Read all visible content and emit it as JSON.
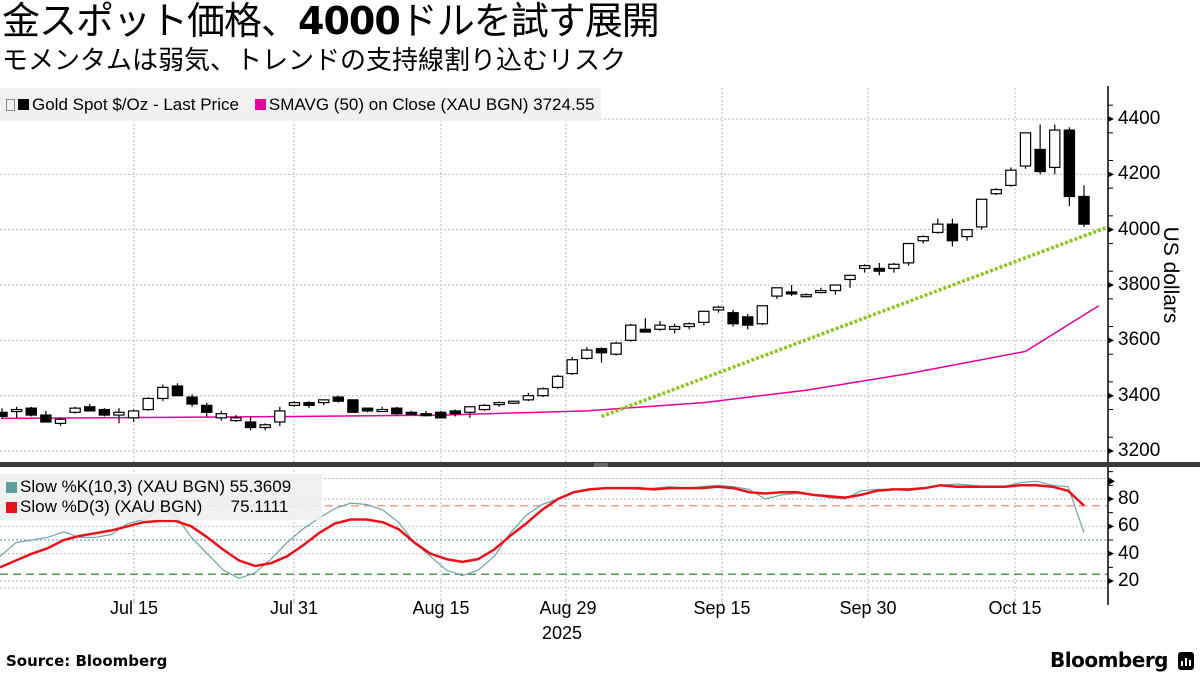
{
  "header": {
    "title_prefix": "金スポット価格、",
    "title_bold": "4000",
    "title_suffix": "ドルを試す展開",
    "subtitle": "モメンタムは弱気、トレンドの支持線割り込むリスク"
  },
  "legend_main": {
    "series1_label": "Gold Spot $/Oz - Last Price",
    "series2_label": "SMAVG (50)  on Close (XAU BGN) 3724.55",
    "series1_color": "#000000",
    "series2_color": "#e6009a"
  },
  "legend_stoch": {
    "k_label": "Slow %K(10,3) (XAU BGN) 55.3609",
    "d_label": "Slow %D(3) (XAU BGN)      75.1111",
    "k_color": "#5f9ea0",
    "d_color": "#e8131a"
  },
  "axes": {
    "y_title": "US dollars",
    "y_ticks": [
      "4400",
      "4200",
      "4000",
      "3800",
      "3600",
      "3400",
      "3200"
    ],
    "stoch_ticks": [
      "80",
      "60",
      "40",
      "20"
    ],
    "x_ticks": [
      "Jul 15",
      "Jul 31",
      "Aug 15",
      "Aug 29",
      "Sep 15",
      "Sep 30",
      "Oct 15"
    ],
    "x_year": "2025"
  },
  "footer": {
    "source": "Source: Bloomberg",
    "brand": "Bloomberg"
  },
  "chart_data": [
    {
      "type": "candlestick",
      "title": "金スポット価格、4000ドルを試す展開",
      "subtitle": "モメンタムは弱気、トレンドの支持線割り込むリスク",
      "ylabel": "US dollars",
      "ylim": [
        3150,
        4480
      ],
      "x_ticks": [
        "Jul 15",
        "Jul 31",
        "Aug 15",
        "Aug 29",
        "Sep 15",
        "Sep 30",
        "Oct 15"
      ],
      "series": [
        {
          "name": "Gold Spot $/Oz - Last Price",
          "ohlc_approx": [
            [
              3340,
              3355,
              3315,
              3325
            ],
            [
              3345,
              3360,
              3320,
              3350
            ],
            [
              3355,
              3360,
              3325,
              3330
            ],
            [
              3330,
              3345,
              3305,
              3305
            ],
            [
              3300,
              3320,
              3290,
              3315
            ],
            [
              3340,
              3360,
              3335,
              3355
            ],
            [
              3360,
              3370,
              3345,
              3345
            ],
            [
              3350,
              3355,
              3325,
              3330
            ],
            [
              3330,
              3355,
              3300,
              3340
            ],
            [
              3320,
              3350,
              3305,
              3345
            ],
            [
              3350,
              3395,
              3345,
              3390
            ],
            [
              3390,
              3440,
              3380,
              3430
            ],
            [
              3435,
              3445,
              3400,
              3400
            ],
            [
              3395,
              3405,
              3360,
              3370
            ],
            [
              3365,
              3375,
              3325,
              3340
            ],
            [
              3320,
              3345,
              3310,
              3335
            ],
            [
              3310,
              3330,
              3305,
              3320
            ],
            [
              3305,
              3325,
              3275,
              3285
            ],
            [
              3285,
              3300,
              3275,
              3295
            ],
            [
              3305,
              3360,
              3290,
              3345
            ],
            [
              3365,
              3380,
              3360,
              3375
            ],
            [
              3375,
              3380,
              3355,
              3365
            ],
            [
              3375,
              3385,
              3365,
              3385
            ],
            [
              3395,
              3400,
              3375,
              3380
            ],
            [
              3385,
              3385,
              3340,
              3340
            ],
            [
              3355,
              3355,
              3340,
              3345
            ],
            [
              3350,
              3360,
              3345,
              3350
            ],
            [
              3355,
              3360,
              3330,
              3335
            ],
            [
              3340,
              3345,
              3330,
              3335
            ],
            [
              3335,
              3345,
              3325,
              3330
            ],
            [
              3340,
              3345,
              3325,
              3320
            ],
            [
              3345,
              3350,
              3325,
              3335
            ],
            [
              3340,
              3360,
              3320,
              3360
            ],
            [
              3350,
              3370,
              3345,
              3365
            ],
            [
              3370,
              3380,
              3360,
              3375
            ],
            [
              3375,
              3380,
              3370,
              3380
            ],
            [
              3385,
              3410,
              3380,
              3400
            ],
            [
              3400,
              3430,
              3395,
              3425
            ],
            [
              3430,
              3475,
              3425,
              3470
            ],
            [
              3480,
              3540,
              3475,
              3530
            ],
            [
              3535,
              3575,
              3530,
              3565
            ],
            [
              3570,
              3575,
              3520,
              3555
            ],
            [
              3550,
              3595,
              3545,
              3590
            ],
            [
              3600,
              3660,
              3595,
              3655
            ],
            [
              3640,
              3680,
              3630,
              3630
            ],
            [
              3640,
              3670,
              3635,
              3655
            ],
            [
              3640,
              3660,
              3625,
              3650
            ],
            [
              3650,
              3665,
              3640,
              3660
            ],
            [
              3665,
              3700,
              3655,
              3705
            ],
            [
              3710,
              3725,
              3700,
              3720
            ],
            [
              3700,
              3710,
              3650,
              3660
            ],
            [
              3685,
              3695,
              3640,
              3655
            ],
            [
              3660,
              3725,
              3655,
              3725
            ],
            [
              3760,
              3790,
              3750,
              3790
            ],
            [
              3775,
              3800,
              3760,
              3770
            ],
            [
              3760,
              3770,
              3755,
              3765
            ],
            [
              3775,
              3790,
              3770,
              3780
            ],
            [
              3780,
              3800,
              3765,
              3800
            ],
            [
              3820,
              3830,
              3790,
              3835
            ],
            [
              3860,
              3875,
              3845,
              3870
            ],
            [
              3860,
              3880,
              3835,
              3850
            ],
            [
              3860,
              3880,
              3845,
              3875
            ],
            [
              3880,
              3940,
              3870,
              3950
            ],
            [
              3960,
              3980,
              3950,
              3975
            ],
            [
              3990,
              4040,
              3985,
              4020
            ],
            [
              4020,
              4040,
              3940,
              3960
            ],
            [
              3975,
              4000,
              3960,
              4000
            ],
            [
              4010,
              4110,
              4000,
              4110
            ],
            [
              4130,
              4150,
              4125,
              4145
            ],
            [
              4160,
              4225,
              4155,
              4215
            ],
            [
              4230,
              4250,
              4220,
              4350
            ],
            [
              4290,
              4380,
              4200,
              4210
            ],
            [
              4225,
              4380,
              4200,
              4360
            ],
            [
              4360,
              4370,
              4085,
              4120
            ],
            [
              4120,
              4160,
              4010,
              4020
            ]
          ]
        },
        {
          "name": "SMAVG (50) on Close (XAU BGN)",
          "last_value": 3724.55,
          "approx_path": [
            [
              0,
              3318
            ],
            [
              20,
              3325
            ],
            [
              30,
              3330
            ],
            [
              40,
              3345
            ],
            [
              48,
              3375
            ],
            [
              55,
              3420
            ],
            [
              62,
              3480
            ],
            [
              70,
              3560
            ],
            [
              75,
              3724.55
            ]
          ]
        },
        {
          "name": "Trend support line",
          "approx_path": [
            [
              41,
              3325
            ],
            [
              80,
              4020
            ]
          ]
        }
      ]
    },
    {
      "type": "line",
      "title": "Slow Stochastic",
      "ylim": [
        10,
        100
      ],
      "reference_lines": [
        80,
        75,
        60,
        50,
        25
      ],
      "series": [
        {
          "name": "Slow %K(10,3) (XAU BGN)",
          "last_value": 55.3609,
          "values": [
            38,
            48,
            50,
            52,
            56,
            52,
            52,
            54,
            62,
            65,
            72,
            68,
            52,
            40,
            28,
            22,
            26,
            36,
            48,
            58,
            66,
            73,
            77,
            76,
            72,
            63,
            48,
            38,
            28,
            24,
            28,
            38,
            55,
            68,
            76,
            80,
            85,
            87,
            88,
            88,
            87,
            88,
            89,
            88,
            89,
            90,
            89,
            87,
            80,
            83,
            84,
            83,
            81,
            80,
            86,
            87,
            87,
            86,
            88,
            90,
            91,
            90,
            89,
            89,
            92,
            93,
            90,
            89,
            55.36
          ]
        },
        {
          "name": "Slow %D(3) (XAU BGN)",
          "last_value": 75.1111,
          "values": [
            30,
            35,
            40,
            44,
            50,
            53,
            55,
            57,
            60,
            63,
            64,
            64,
            60,
            52,
            43,
            35,
            31,
            33,
            38,
            46,
            55,
            62,
            65,
            65,
            63,
            58,
            48,
            40,
            36,
            34,
            36,
            43,
            53,
            62,
            72,
            80,
            85,
            87,
            88,
            88,
            88,
            87,
            88,
            88,
            88,
            89,
            88,
            85,
            84,
            85,
            85,
            83,
            82,
            81,
            83,
            86,
            87,
            87,
            88,
            90,
            89,
            89,
            89,
            89,
            90,
            90,
            89,
            86,
            75.11
          ]
        }
      ]
    }
  ]
}
